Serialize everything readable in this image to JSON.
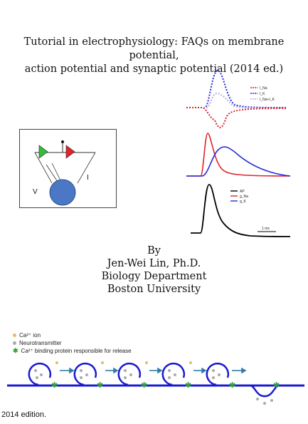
{
  "title_lines": [
    "Tutorial in electrophysiology: FAQs on membrane potential,",
    "action potential and synaptic potential (2014 ed.)"
  ],
  "circuit": {
    "label_v": "V",
    "label_i": "I"
  },
  "chart_top": {
    "legend": [
      "I_Na",
      "I_K",
      "I_Na+I_K"
    ],
    "colors": [
      "#e0242c",
      "#2a2ad8",
      "#b9b0e6"
    ]
  },
  "chart_mid": {
    "colors": [
      "#e0242c",
      "#2a2ad8"
    ]
  },
  "chart_bottom": {
    "legend": [
      "AP",
      "g_Na",
      "g_K"
    ],
    "colors": [
      "#000000",
      "#e0242c",
      "#2a2ad8"
    ],
    "scale_label": "1 ms"
  },
  "author": {
    "by": "By",
    "name": "Jen-Wei Lin, Ph.D.",
    "department": "Biology Department",
    "university": "Boston University"
  },
  "synapse_legend": {
    "ion": "Ca²⁺ ion",
    "neurotransmitter": "Neurotransmitter",
    "binding_protein": "Ca²⁺ binding protein responsible for release"
  },
  "edition_label": "2014 edition."
}
